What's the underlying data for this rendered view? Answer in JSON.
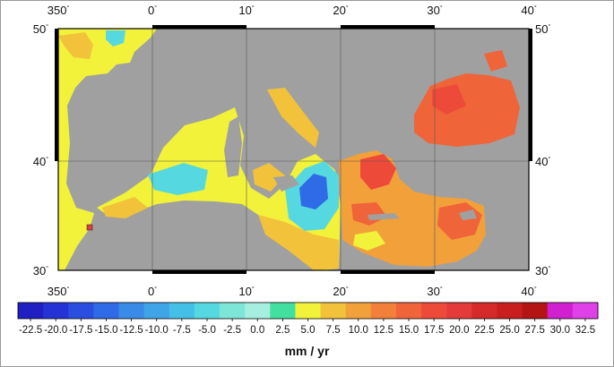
{
  "map": {
    "lon_ticks": [
      "350",
      "0",
      "10",
      "20",
      "30",
      "40"
    ],
    "lat_ticks": [
      "50",
      "40",
      "30"
    ],
    "degree_symbol": "°",
    "land_color": "#a0a0a0",
    "unit_label": "mm / yr"
  },
  "colorbar": {
    "values": [
      "-22.5",
      "-20.0",
      "-17.5",
      "-15.0",
      "-12.5",
      "-10.0",
      "-7.5",
      "-5.0",
      "-2.5",
      "0.0",
      "2.5",
      "5.0",
      "7.5",
      "10.0",
      "12.5",
      "15.0",
      "17.5",
      "20.0",
      "22.5",
      "25.0",
      "27.5",
      "30.0",
      "32.5"
    ],
    "colors": [
      "#1f1fc4",
      "#2533d6",
      "#2a4fe0",
      "#2f6be6",
      "#3a8ae8",
      "#3fa4e8",
      "#44c0e6",
      "#56d8e0",
      "#7ee6d6",
      "#a6eee0",
      "#42e0a0",
      "#f2f23a",
      "#f2c23a",
      "#f2a03a",
      "#f2803a",
      "#f0643a",
      "#ee4a3a",
      "#e43a3a",
      "#d62a2a",
      "#c81e1e",
      "#b41414",
      "#d020d0",
      "#e040e8"
    ]
  }
}
